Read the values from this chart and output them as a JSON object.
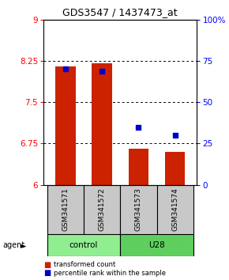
{
  "title": "GDS3547 / 1437473_at",
  "samples": [
    "GSM341571",
    "GSM341572",
    "GSM341573",
    "GSM341574"
  ],
  "bar_values": [
    8.15,
    8.2,
    6.65,
    6.6
  ],
  "bar_bottom": 6.0,
  "percentile_values": [
    70,
    69,
    35,
    30
  ],
  "bar_color": "#cc2200",
  "dot_color": "#0000cc",
  "ylim_left": [
    6,
    9
  ],
  "ylim_right": [
    0,
    100
  ],
  "yticks_left": [
    6,
    6.75,
    7.5,
    8.25,
    9
  ],
  "yticks_right": [
    0,
    25,
    50,
    75,
    100
  ],
  "ytick_labels_right": [
    "0",
    "25",
    "50",
    "75",
    "100%"
  ],
  "groups": [
    {
      "label": "control",
      "samples": [
        0,
        1
      ],
      "color": "#90ee90"
    },
    {
      "label": "U28",
      "samples": [
        2,
        3
      ],
      "color": "#5ecf5e"
    }
  ],
  "agent_label": "agent",
  "legend_items": [
    {
      "label": "transformed count",
      "color": "#cc2200"
    },
    {
      "label": "percentile rank within the sample",
      "color": "#0000cc"
    }
  ],
  "background_labels": "#c8c8c8",
  "bar_width": 0.55,
  "x_positions": [
    0,
    1,
    2,
    3
  ]
}
